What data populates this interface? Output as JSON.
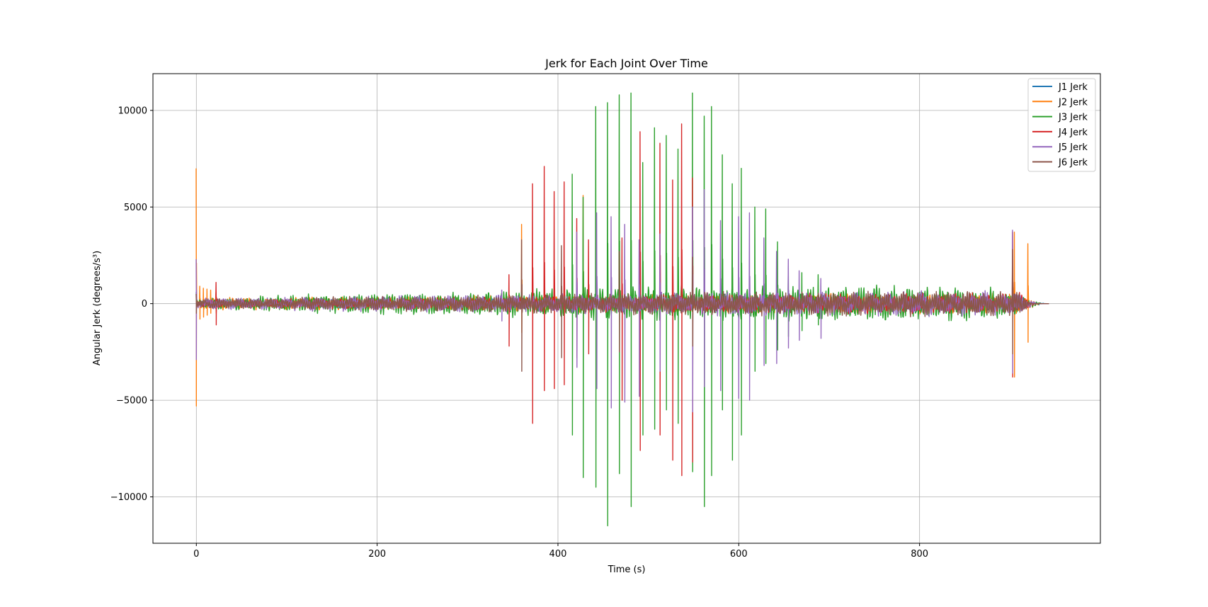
{
  "chart_data": {
    "type": "line",
    "title": "Jerk for Each Joint Over Time",
    "xlabel": "Time (s)",
    "ylabel": "Angular Jerk (degrees/s³)",
    "xlim": [
      -48,
      1000
    ],
    "ylim": [
      -12400,
      11900
    ],
    "xticks": [
      0,
      200,
      400,
      600,
      800
    ],
    "xtick_labels": [
      "0",
      "200",
      "400",
      "600",
      "800"
    ],
    "yticks": [
      -10000,
      -5000,
      0,
      5000,
      10000
    ],
    "ytick_labels": [
      "−10000",
      "−5000",
      "0",
      "5000",
      "10000"
    ],
    "grid": true,
    "legend_position": "top-right",
    "series": [
      {
        "name": "J1 Jerk",
        "color": "#1f77b4",
        "spikes": [
          [
            0,
            600,
            -700
          ],
          [
            22,
            500,
            -400
          ],
          [
            905,
            500,
            -500
          ]
        ],
        "envelope": [
          [
            0,
            200
          ],
          [
            300,
            250
          ],
          [
            700,
            300
          ],
          [
            910,
            300
          ],
          [
            940,
            0
          ]
        ]
      },
      {
        "name": "J2 Jerk",
        "color": "#ff7f0e",
        "spikes": [
          [
            0,
            7000,
            -5300
          ],
          [
            4,
            900,
            -800
          ],
          [
            8,
            800,
            -700
          ],
          [
            12,
            750,
            -600
          ],
          [
            16,
            700,
            -500
          ],
          [
            22,
            600,
            -500
          ],
          [
            360,
            4100,
            -1500
          ],
          [
            428,
            5600,
            -2500
          ],
          [
            905,
            3700,
            -3800
          ],
          [
            920,
            3100,
            -2000
          ]
        ],
        "envelope": [
          [
            0,
            300
          ],
          [
            300,
            400
          ],
          [
            700,
            500
          ],
          [
            910,
            500
          ],
          [
            935,
            0
          ]
        ]
      },
      {
        "name": "J3 Jerk",
        "color": "#2ca02c",
        "spikes": [
          [
            416,
            6700,
            -6800
          ],
          [
            428,
            5500,
            -9000
          ],
          [
            442,
            10200,
            -9500
          ],
          [
            455,
            10400,
            -11500
          ],
          [
            468,
            10800,
            -8800
          ],
          [
            481,
            10900,
            -10500
          ],
          [
            494,
            7300,
            -6800
          ],
          [
            507,
            9100,
            -6500
          ],
          [
            520,
            8700,
            -5500
          ],
          [
            533,
            8000,
            -6200
          ],
          [
            549,
            10900,
            -8700
          ],
          [
            562,
            9700,
            -10500
          ],
          [
            570,
            10200,
            -8900
          ],
          [
            582,
            7700,
            -5500
          ],
          [
            593,
            6200,
            -8100
          ],
          [
            603,
            7000,
            -6800
          ],
          [
            618,
            5000,
            -3500
          ],
          [
            630,
            4900,
            -3100
          ],
          [
            643,
            3200,
            -2400
          ],
          [
            655,
            1900,
            -1700
          ],
          [
            670,
            1600,
            -1400
          ],
          [
            688,
            1500,
            -1100
          ]
        ],
        "envelope": [
          [
            0,
            250
          ],
          [
            100,
            450
          ],
          [
            300,
            650
          ],
          [
            500,
            900
          ],
          [
            700,
            950
          ],
          [
            800,
            900
          ],
          [
            900,
            800
          ],
          [
            915,
            400
          ],
          [
            935,
            0
          ]
        ]
      },
      {
        "name": "J4 Jerk",
        "color": "#d62728",
        "spikes": [
          [
            22,
            1100,
            -1100
          ],
          [
            346,
            1500,
            -2200
          ],
          [
            372,
            6200,
            -6200
          ],
          [
            385,
            7100,
            -4500
          ],
          [
            396,
            5800,
            -4400
          ],
          [
            407,
            6300,
            -4200
          ],
          [
            421,
            4400,
            -2800
          ],
          [
            434,
            3300,
            -2600
          ],
          [
            471,
            3400,
            -5000
          ],
          [
            491,
            8900,
            -7600
          ],
          [
            513,
            8300,
            -6800
          ],
          [
            527,
            6400,
            -8100
          ],
          [
            537,
            9300,
            -8900
          ],
          [
            549,
            6500,
            -8200
          ],
          [
            903,
            3700,
            -3800
          ]
        ],
        "envelope": [
          [
            0,
            200
          ],
          [
            300,
            350
          ],
          [
            600,
            500
          ],
          [
            800,
            550
          ],
          [
            910,
            550
          ],
          [
            930,
            0
          ]
        ]
      },
      {
        "name": "J5 Jerk",
        "color": "#9467bd",
        "spikes": [
          [
            0,
            2300,
            -2900
          ],
          [
            338,
            700,
            -900
          ],
          [
            421,
            3700,
            -3300
          ],
          [
            443,
            4700,
            -4400
          ],
          [
            459,
            4500,
            -5400
          ],
          [
            474,
            4100,
            -5100
          ],
          [
            490,
            3300,
            -4800
          ],
          [
            513,
            3600,
            -3500
          ],
          [
            549,
            5000,
            -5600
          ],
          [
            562,
            5900,
            -4300
          ],
          [
            580,
            4300,
            -4500
          ],
          [
            600,
            4500,
            -4900
          ],
          [
            612,
            4700,
            -5000
          ],
          [
            628,
            3400,
            -3200
          ],
          [
            642,
            2700,
            -3100
          ],
          [
            655,
            2300,
            -2300
          ],
          [
            667,
            1700,
            -1900
          ],
          [
            691,
            1300,
            -1800
          ],
          [
            903,
            3800,
            -3600
          ]
        ],
        "envelope": [
          [
            0,
            300
          ],
          [
            300,
            450
          ],
          [
            600,
            600
          ],
          [
            800,
            650
          ],
          [
            910,
            600
          ],
          [
            930,
            0
          ]
        ]
      },
      {
        "name": "J6 Jerk",
        "color": "#8c564b",
        "spikes": [
          [
            0,
            500,
            -500
          ],
          [
            360,
            3300,
            -3500
          ],
          [
            404,
            3000,
            -2800
          ],
          [
            468,
            2700,
            -2500
          ],
          [
            549,
            2400,
            -2200
          ],
          [
            903,
            2800,
            -2600
          ]
        ],
        "envelope": [
          [
            0,
            250
          ],
          [
            300,
            450
          ],
          [
            600,
            650
          ],
          [
            800,
            650
          ],
          [
            910,
            650
          ],
          [
            925,
            0
          ]
        ]
      }
    ]
  }
}
